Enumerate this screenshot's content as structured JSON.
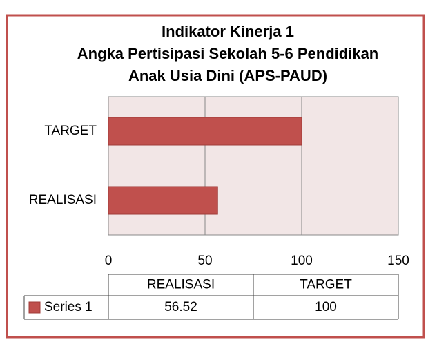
{
  "chart_data": {
    "type": "bar",
    "orientation": "horizontal",
    "title": [
      "Indikator Kinerja 1",
      "Angka Pertisipasi Sekolah 5-6 Pendidikan",
      "Anak Usia Dini (APS-PAUD)"
    ],
    "categories": [
      "REALISASI",
      "TARGET"
    ],
    "series": [
      {
        "name": "Series 1",
        "color": "#c0504d",
        "values": [
          56.52,
          100
        ]
      }
    ],
    "xlim": [
      0,
      150
    ],
    "xticks": [
      0,
      50,
      100,
      150
    ],
    "grid": true,
    "data_table": true
  }
}
